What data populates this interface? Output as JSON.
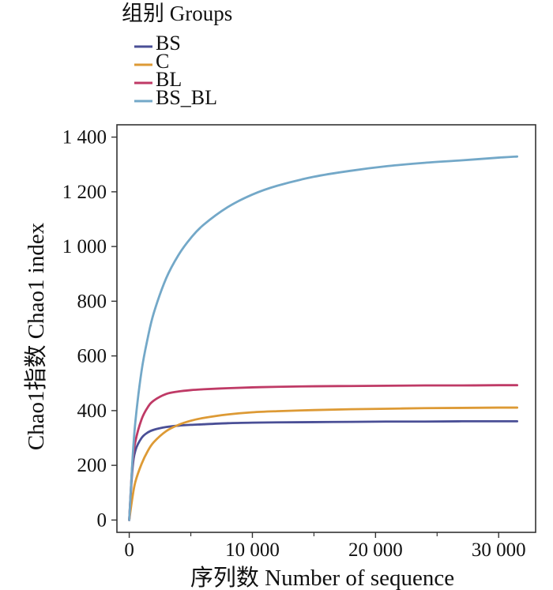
{
  "chart_data": {
    "type": "line",
    "title": "",
    "xlabel": "序列数 Number of sequence",
    "ylabel": "Chao1指数 Chao1 index",
    "xlim": [
      -1000,
      33000
    ],
    "ylim": [
      -45,
      1445
    ],
    "x_ticks": [
      0,
      10000,
      20000,
      30000
    ],
    "x_tick_labels": [
      "0",
      "10 000",
      "20 000",
      "30 000"
    ],
    "y_ticks": [
      0,
      200,
      400,
      600,
      800,
      1000,
      1200,
      1400
    ],
    "y_tick_labels": [
      "0",
      "200",
      "400",
      "600",
      "800",
      "1 000",
      "1 200",
      "1 400"
    ],
    "grid": false,
    "legend": {
      "title": "组别 Groups",
      "placement": "top-left, above plot"
    },
    "x": [
      0,
      250,
      500,
      1000,
      1500,
      2000,
      3000,
      4000,
      5000,
      6000,
      8000,
      10000,
      12000,
      15000,
      18000,
      21000,
      24000,
      27000,
      30000,
      31500
    ],
    "series": [
      {
        "name": "BS",
        "color": "#4a4f96",
        "values": [
          0,
          180,
          254,
          300,
          320,
          330,
          340,
          345,
          348,
          350,
          354,
          356,
          357,
          358,
          359,
          360,
          360,
          361,
          361,
          361
        ]
      },
      {
        "name": "C",
        "color": "#dd9a35",
        "values": [
          0,
          80,
          140,
          205,
          252,
          285,
          325,
          348,
          363,
          373,
          386,
          394,
          398,
          402,
          405,
          407,
          409,
          410,
          411,
          411
        ]
      },
      {
        "name": "BL",
        "color": "#bf3a66",
        "values": [
          0,
          200,
          287,
          368,
          412,
          437,
          461,
          470,
          475,
          478,
          482,
          485,
          487,
          489,
          490,
          491,
          492,
          492,
          493,
          493
        ]
      },
      {
        "name": "BS_BL",
        "color": "#73a8c8",
        "values": [
          0,
          210,
          360,
          545,
          665,
          758,
          884,
          969,
          1031,
          1078,
          1144,
          1190,
          1222,
          1255,
          1277,
          1294,
          1306,
          1315,
          1325,
          1329
        ]
      }
    ]
  }
}
